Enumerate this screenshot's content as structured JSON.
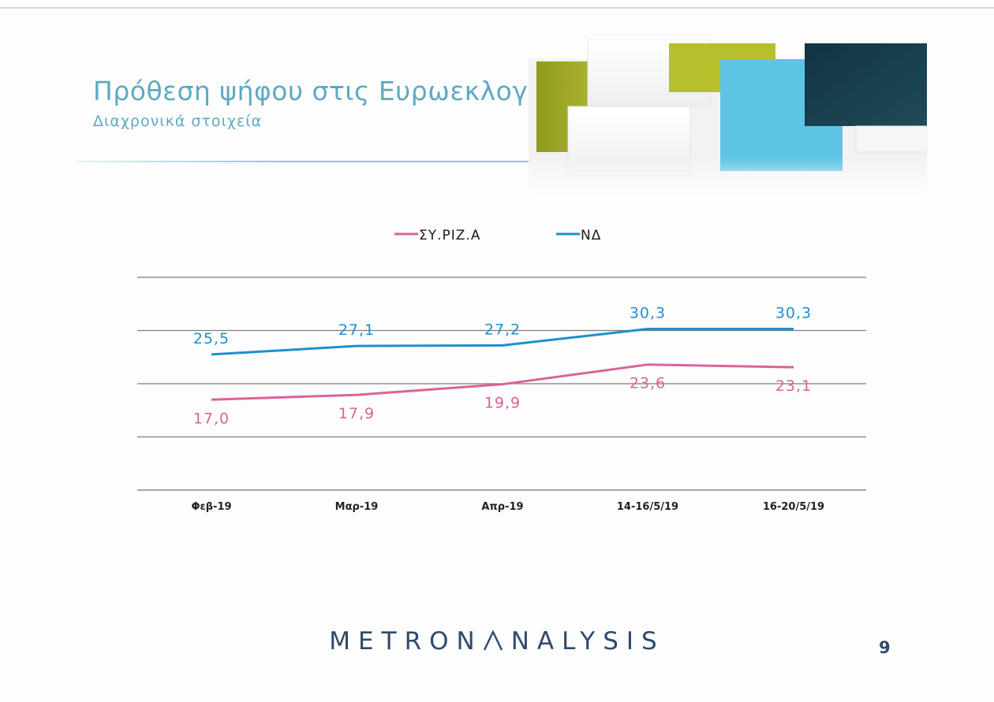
{
  "header": {
    "title": "Πρόθεση ψήφου στις Ευρωεκλογές",
    "subtitle": "Διαχρονικά στοιχεία"
  },
  "chart_data": {
    "type": "line",
    "categories": [
      "Φεβ-19",
      "Μαρ-19",
      "Απρ-19",
      "14-16/5/19",
      "16-20/5/19"
    ],
    "series": [
      {
        "name": "ΣΥ.ΡΙΖ.Α",
        "color": "#d9639a",
        "values": [
          17.0,
          17.9,
          19.9,
          23.6,
          23.1
        ],
        "labels": [
          "17,0",
          "17,9",
          "19,9",
          "23,6",
          "23,1"
        ]
      },
      {
        "name": "ΝΔ",
        "color": "#1f8fcf",
        "values": [
          25.5,
          27.1,
          27.2,
          30.3,
          30.3
        ],
        "labels": [
          "25,5",
          "27,1",
          "27,2",
          "30,3",
          "30,3"
        ]
      }
    ],
    "ylim": [
      0,
      40
    ],
    "grid": true,
    "legend_position": "top-center"
  },
  "footer": {
    "brand_left": "METRON",
    "brand_right": "NALYSIS",
    "page_number": "9"
  },
  "colors": {
    "title": "#5fa9c2",
    "brand": "#2f4a6a",
    "deco_green": "#b2bb2e",
    "deco_cyan": "#5ec4e6",
    "deco_navy": "#173c4a"
  }
}
